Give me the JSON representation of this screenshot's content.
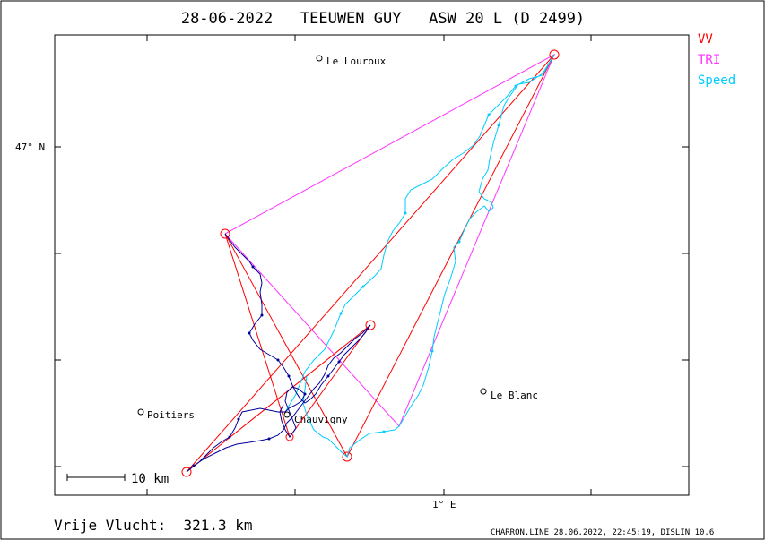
{
  "title": "28-06-2022   TEEUWEN GUY   ASW 20 L (D 2499)",
  "legend": [
    {
      "label": "VV",
      "color": "#ff0000"
    },
    {
      "label": "TRI",
      "color": "#ff33ff"
    },
    {
      "label": "Speed",
      "color": "#00ccff"
    }
  ],
  "axes": {
    "lat_label": "47° N",
    "lon_label": "1° E"
  },
  "towns": [
    {
      "name": "Le Louroux"
    },
    {
      "name": "Poitiers"
    },
    {
      "name": "Chauvigny"
    },
    {
      "name": "Le Blanc"
    }
  ],
  "scale_label": "10 km",
  "footer": {
    "distance": "Vrije Vlucht:  321.3 km",
    "credit": "CHARRON.LINE 28.06.2022, 22:45:19, DISLIN 10.6"
  },
  "colors": {
    "vv": "#ff0000",
    "tri": "#ff33ff",
    "speed": "#00ccff",
    "track": "#000099"
  }
}
